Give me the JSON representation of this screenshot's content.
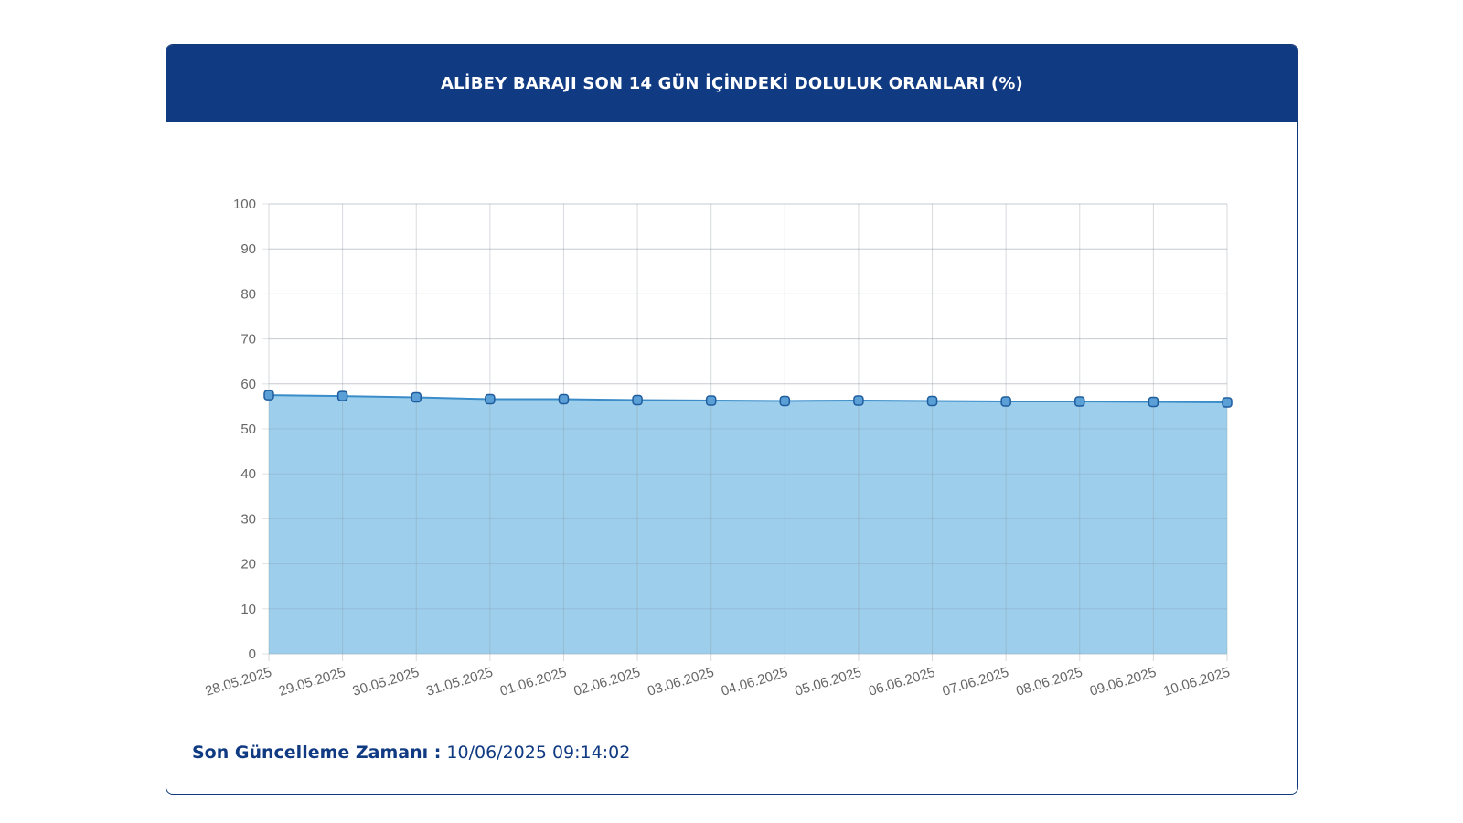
{
  "header": {
    "title": "ALİBEY BARAJI SON 14 GÜN İÇİNDEKİ DOLULUK ORANLARI (%)"
  },
  "footer": {
    "label": "Son Güncelleme Zamanı :",
    "value": "10/06/2025 09:14:02"
  },
  "colors": {
    "header_bg": "#103a82",
    "line": "#3a8cc9",
    "area_fill": "#9dcfec",
    "point_fill": "#5aa0d6",
    "point_stroke": "#1f5c9e",
    "grid": "#e2e2e2"
  },
  "chart_data": {
    "type": "area",
    "categories": [
      "28.05.2025",
      "29.05.2025",
      "30.05.2025",
      "31.05.2025",
      "01.06.2025",
      "02.06.2025",
      "03.06.2025",
      "04.06.2025",
      "05.06.2025",
      "06.06.2025",
      "07.06.2025",
      "08.06.2025",
      "09.06.2025",
      "10.06.2025"
    ],
    "series": [
      {
        "values": [
          57.5,
          57.3,
          57.0,
          56.6,
          56.6,
          56.4,
          56.3,
          56.2,
          56.3,
          56.2,
          56.1,
          56.1,
          56.0,
          55.9
        ]
      }
    ],
    "ylim": [
      0,
      100
    ],
    "yticks": [
      0,
      10,
      20,
      30,
      40,
      50,
      60,
      70,
      80,
      90,
      100
    ],
    "grid": true,
    "legend": "none"
  }
}
